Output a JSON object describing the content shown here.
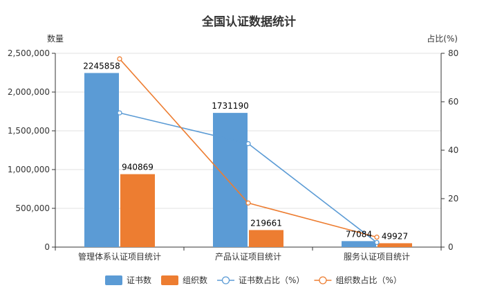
{
  "chart_data": {
    "type": "bar",
    "title": "全国认证数据统计",
    "ylabel": "数量",
    "y2label": "占比(%)",
    "categories": [
      "管理体系认证项目统计",
      "产品认证项目统计",
      "服务认证项目统计"
    ],
    "ylim": [
      0,
      2500000
    ],
    "y_ticks": [
      0,
      500000,
      1000000,
      1500000,
      2000000,
      2500000
    ],
    "y_tick_labels": [
      "0",
      "500,000",
      "1,000,000",
      "1,500,000",
      "2,000,000",
      "2,500,000"
    ],
    "y2lim": [
      0,
      80
    ],
    "y2_ticks": [
      0,
      20,
      40,
      60,
      80
    ],
    "y2_tick_labels": [
      "0",
      "20",
      "40",
      "60",
      "80"
    ],
    "grid": true,
    "legend_position": "bottom",
    "series": [
      {
        "name": "证书数",
        "type": "bar",
        "axis": "left",
        "color": "#5b9bd5",
        "values": [
          2245858,
          1731190,
          77084
        ],
        "labels": [
          "2245858",
          "1731190",
          "77084"
        ]
      },
      {
        "name": "组织数",
        "type": "bar",
        "axis": "left",
        "color": "#ed7d31",
        "values": [
          940869,
          219661,
          49927
        ],
        "labels": [
          "940869",
          "219661",
          "49927"
        ]
      },
      {
        "name": "证书数占比（%）",
        "type": "line",
        "axis": "right",
        "color": "#5b9bd5",
        "values": [
          55.4,
          42.7,
          1.9
        ]
      },
      {
        "name": "组织数占比（%）",
        "type": "line",
        "axis": "right",
        "color": "#ed7d31",
        "values": [
          77.7,
          18.2,
          4.1
        ]
      }
    ]
  }
}
